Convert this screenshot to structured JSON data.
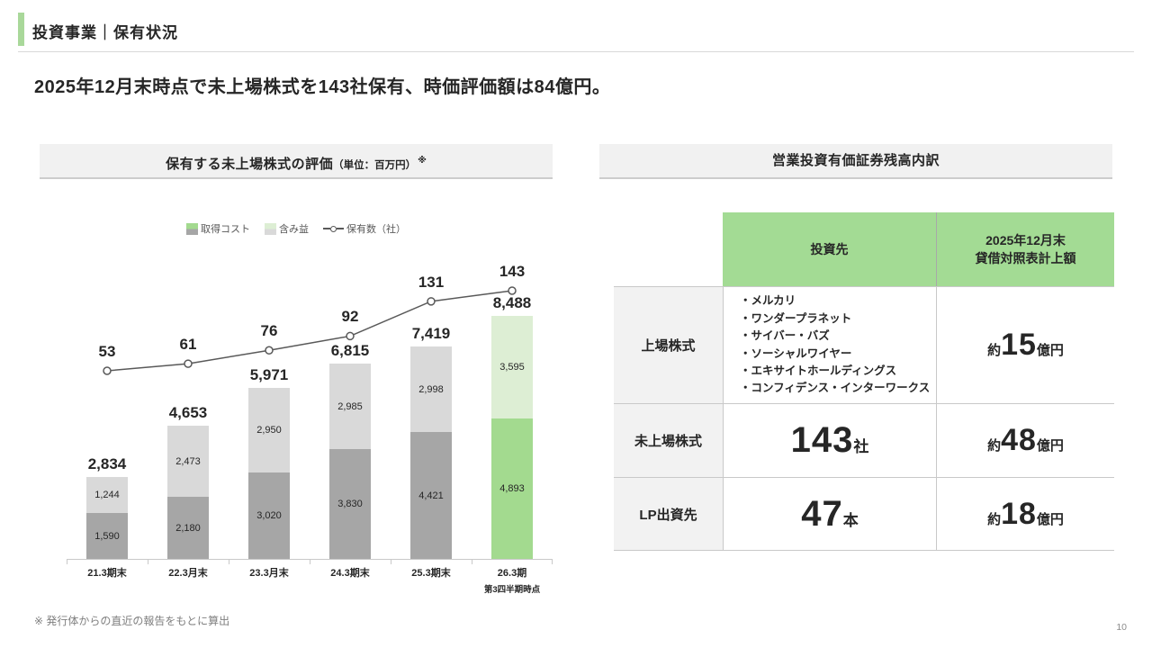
{
  "page": {
    "title": "投資事業｜保有状況",
    "headline": "2025年12月末時点で未上場株式を143社保有、時価評価額は84億円。",
    "footnote": "※ 発行体からの直近の報告をもとに算出",
    "page_number": "10"
  },
  "left_panel": {
    "title": "保有する未上場株式の評価",
    "unit": "（単位：百万円）",
    "note_mark": "※"
  },
  "chart_data": {
    "type": "bar",
    "subtype": "stacked-bar-with-line",
    "title": "保有する未上場株式の評価（単位：百万円）",
    "value_unit": "百万円",
    "categories": [
      "21.3期末",
      "22.3月末",
      "23.3月末",
      "24.3期末",
      "25.3期末",
      "26.3期"
    ],
    "category_sublabels": [
      "",
      "",
      "",
      "",
      "",
      "第3四半期時点"
    ],
    "series": [
      {
        "name": "取得コスト",
        "values": [
          1590,
          2180,
          3020,
          3830,
          4421,
          4893
        ]
      },
      {
        "name": "含み益",
        "values": [
          1244,
          2473,
          2950,
          2985,
          2998,
          3595
        ]
      }
    ],
    "totals": [
      2834,
      4653,
      5971,
      6815,
      7419,
      8488
    ],
    "line_series": {
      "name": "保有数（社）",
      "values": [
        53,
        61,
        76,
        92,
        131,
        143
      ]
    },
    "highlight_index": 5,
    "legend_position": "top",
    "grid": false,
    "colors": {
      "bar_cost": "#a6a6a6",
      "bar_gain": "#d9d9d9",
      "bar_cost_highlight": "#a3da8f",
      "bar_gain_highlight": "#ddeed4",
      "line": "#595959"
    }
  },
  "right_panel": {
    "title": "営業投資有価証券残高内訳",
    "table": {
      "col_headers": [
        {
          "lines": [
            "投資先"
          ]
        },
        {
          "lines": [
            "2025年12月末",
            "貸借対照表計上額"
          ]
        }
      ],
      "rows": [
        {
          "label": "上場株式",
          "investees": [
            "メルカリ",
            "ワンダープラネット",
            "サイバー・バズ",
            "ソーシャルワイヤー",
            "エキサイトホールディングス",
            "コンフィデンス・インターワークス"
          ],
          "amount": {
            "prefix": "約",
            "value": "15",
            "suffix": "億円"
          }
        },
        {
          "label": "未上場株式",
          "middle": {
            "value": "143",
            "unit": "社"
          },
          "amount": {
            "prefix": "約",
            "value": "48",
            "suffix": "億円"
          }
        },
        {
          "label": "LP出資先",
          "middle": {
            "value": "47",
            "unit": "本"
          },
          "amount": {
            "prefix": "約",
            "value": "18",
            "suffix": "億円"
          }
        }
      ]
    }
  }
}
